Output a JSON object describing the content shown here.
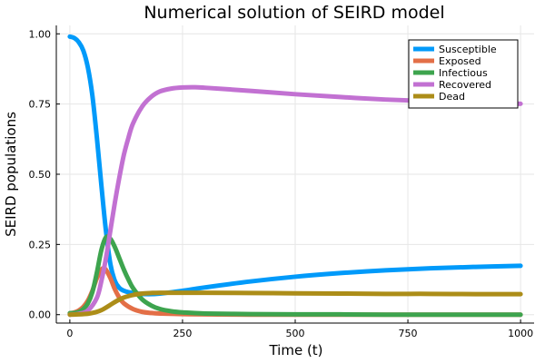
{
  "chart_data": {
    "type": "line",
    "title": "Numerical solution of SEIRD model",
    "xlabel": "Time (t)",
    "ylabel": "SEIRD populations",
    "xlim": [
      -30,
      1030
    ],
    "ylim": [
      -0.03,
      1.03
    ],
    "xticks": [
      0,
      250,
      500,
      750,
      1000
    ],
    "xtick_labels": [
      "0",
      "250",
      "500",
      "750",
      "1000"
    ],
    "yticks": [
      0,
      0.25,
      0.5,
      0.75,
      1
    ],
    "ytick_labels": [
      "0.00",
      "0.25",
      "0.50",
      "0.75",
      "1.00"
    ],
    "grid": true,
    "legend_position": "top-right",
    "series": [
      {
        "name": "Susceptible",
        "color": "#009AFA",
        "x": [
          0,
          10,
          20,
          30,
          40,
          50,
          60,
          70,
          80,
          90,
          100,
          110,
          120,
          130,
          150,
          175,
          200,
          250,
          300,
          400,
          500,
          600,
          700,
          800,
          900,
          1000
        ],
        "y": [
          0.99,
          0.985,
          0.97,
          0.94,
          0.88,
          0.78,
          0.63,
          0.46,
          0.3,
          0.18,
          0.12,
          0.095,
          0.085,
          0.08,
          0.075,
          0.073,
          0.075,
          0.085,
          0.097,
          0.118,
          0.135,
          0.148,
          0.158,
          0.165,
          0.17,
          0.174
        ]
      },
      {
        "name": "Exposed",
        "color": "#E36F47",
        "x": [
          0,
          10,
          20,
          30,
          40,
          50,
          60,
          70,
          75,
          80,
          90,
          100,
          110,
          120,
          140,
          160,
          180,
          200,
          250,
          300,
          400,
          500,
          600,
          700,
          800,
          900,
          1000
        ],
        "y": [
          0.005,
          0.008,
          0.015,
          0.028,
          0.05,
          0.085,
          0.13,
          0.16,
          0.165,
          0.16,
          0.13,
          0.09,
          0.06,
          0.04,
          0.02,
          0.01,
          0.006,
          0.004,
          0.002,
          0.001,
          0.0,
          0.0,
          0.0,
          0.0,
          0.0,
          0.0,
          0.0
        ]
      },
      {
        "name": "Infectious",
        "color": "#3DA44E",
        "x": [
          0,
          10,
          20,
          30,
          40,
          50,
          60,
          70,
          80,
          90,
          100,
          110,
          120,
          130,
          140,
          160,
          180,
          200,
          225,
          250,
          300,
          400,
          500,
          600,
          700,
          800,
          900,
          1000
        ],
        "y": [
          0.005,
          0.006,
          0.01,
          0.02,
          0.04,
          0.08,
          0.15,
          0.23,
          0.275,
          0.27,
          0.24,
          0.2,
          0.16,
          0.125,
          0.095,
          0.055,
          0.033,
          0.02,
          0.012,
          0.008,
          0.004,
          0.002,
          0.001,
          0.001,
          0.0,
          0.0,
          0.0,
          0.0
        ]
      },
      {
        "name": "Recovered",
        "color": "#C271D2",
        "x": [
          0,
          20,
          40,
          60,
          70,
          80,
          90,
          100,
          110,
          120,
          130,
          140,
          160,
          180,
          200,
          225,
          250,
          275,
          300,
          400,
          500,
          600,
          700,
          800,
          900,
          1000
        ],
        "y": [
          0.0,
          0.003,
          0.015,
          0.06,
          0.12,
          0.2,
          0.3,
          0.4,
          0.49,
          0.57,
          0.63,
          0.68,
          0.74,
          0.775,
          0.795,
          0.805,
          0.809,
          0.81,
          0.808,
          0.797,
          0.785,
          0.775,
          0.766,
          0.76,
          0.755,
          0.751
        ]
      },
      {
        "name": "Dead",
        "color": "#AC8D18",
        "x": [
          0,
          20,
          40,
          50,
          60,
          70,
          80,
          90,
          100,
          110,
          120,
          130,
          140,
          160,
          180,
          200,
          250,
          300,
          400,
          500,
          600,
          700,
          800,
          900,
          1000
        ],
        "y": [
          0.0,
          0.001,
          0.003,
          0.006,
          0.01,
          0.016,
          0.025,
          0.035,
          0.045,
          0.054,
          0.061,
          0.066,
          0.07,
          0.075,
          0.077,
          0.078,
          0.078,
          0.078,
          0.077,
          0.076,
          0.075,
          0.074,
          0.074,
          0.073,
          0.073
        ]
      }
    ]
  }
}
